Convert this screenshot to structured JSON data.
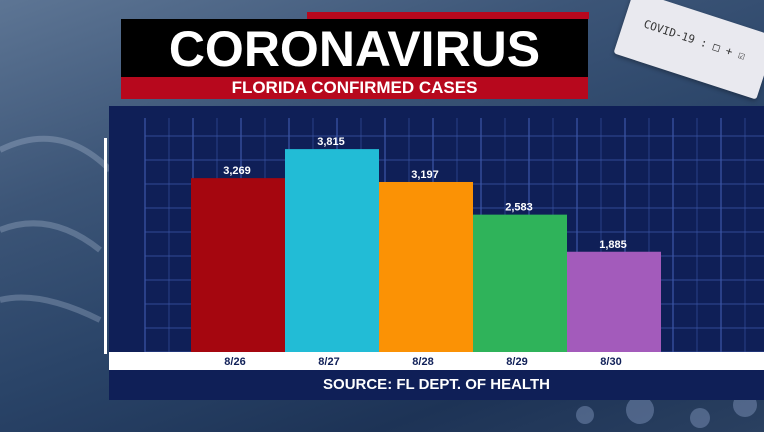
{
  "header": {
    "title": "CORONAVIRUS",
    "subtitle": "FLORIDA CONFIRMED CASES"
  },
  "decor": {
    "test_card_text": "COVID-19 : □ + ☑"
  },
  "footer": {
    "source": "SOURCE: FL DEPT. OF HEALTH"
  },
  "chart_data": {
    "type": "bar",
    "categories": [
      "8/26",
      "8/27",
      "8/28",
      "8/29",
      "8/30"
    ],
    "values": [
      3269,
      3815,
      3197,
      2583,
      1885
    ],
    "value_labels": [
      "3,269",
      "3,815",
      "3,197",
      "2,583",
      "1,885"
    ],
    "colors": [
      "#a5060f",
      "#22bcd6",
      "#fb9205",
      "#2fb35a",
      "#a35bbb"
    ],
    "ylim": [
      0,
      4400
    ],
    "grid": true,
    "title": "",
    "xlabel": "",
    "ylabel": ""
  }
}
